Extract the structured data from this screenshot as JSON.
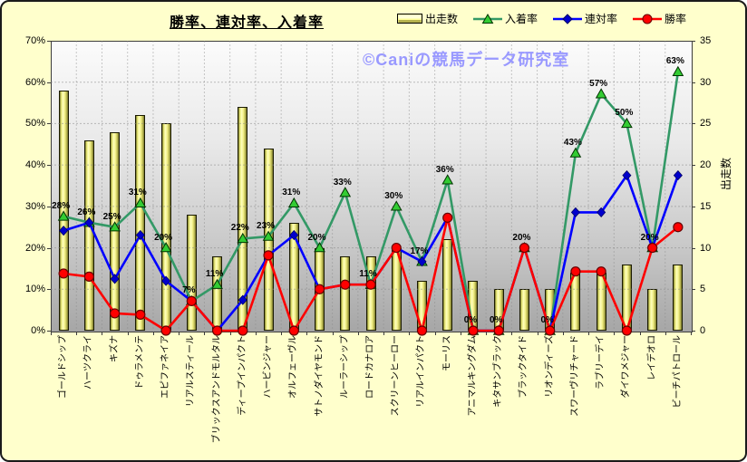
{
  "title": "勝率、連対率、入着率",
  "watermark": "©Caniの競馬データ研究室",
  "legend": [
    {
      "label": "出走数",
      "marker": "bar"
    },
    {
      "label": "入着率",
      "marker": "triangle"
    },
    {
      "label": "連対率",
      "marker": "diamond"
    },
    {
      "label": "勝率",
      "marker": "circle"
    }
  ],
  "colors": {
    "background": "#FFFFCC",
    "bar_face": "#FFFF99",
    "bar_border": "#1a1a00",
    "place_line": "#339966",
    "place_marker": "#33CC33",
    "quinella_line": "#0000FF",
    "quinella_marker": "#0000CC",
    "win_line": "#FF0000",
    "win_marker": "#FF0000",
    "watermark": "#9999FF",
    "gridline": "#8a8a8a"
  },
  "chart_data": {
    "type": "bar+line combo",
    "categories": [
      "ゴールドシップ",
      "ハーツクライ",
      "キズナ",
      "ドゥラメンテ",
      "エピファネイア",
      "リアルスティール",
      "ブリックスアンドモルタル",
      "ディープインパクト",
      "ハービンジャー",
      "オルフェーヴル",
      "サトノダイヤモンド",
      "ルーラーシップ",
      "ロードカナロア",
      "スクリーンヒーロー",
      "リアルインパクト",
      "モーリス",
      "アニマルキングダム",
      "キタサンブラック",
      "ブラックタイド",
      "リオンディーズ",
      "スワーヴリチャード",
      "ラブリーデイ",
      "ダイワメジャー",
      "レイデオロ",
      "ビーチパトロール"
    ],
    "series": [
      {
        "name": "出走数",
        "type": "bar",
        "axis": "right",
        "values": [
          29,
          23,
          24,
          26,
          25,
          14,
          9,
          27,
          22,
          13,
          10,
          9,
          9,
          10,
          6,
          11,
          6,
          5,
          5,
          5,
          7,
          7,
          8,
          5,
          8
        ]
      },
      {
        "name": "入着率",
        "type": "line",
        "marker": "triangle",
        "axis": "left",
        "unit": "%",
        "values": [
          27.59,
          26.09,
          25,
          30.77,
          20,
          7.14,
          11.11,
          22.22,
          22.73,
          30.77,
          20,
          33.33,
          11.11,
          30,
          16.67,
          36.36,
          0,
          0,
          20,
          0,
          42.86,
          57.14,
          50,
          20,
          62.5
        ],
        "point_labels": [
          "28%",
          "26%",
          "25%",
          "31%",
          "20%",
          "7%",
          "11%",
          "22%",
          "23%",
          "31%",
          "20%",
          "33%",
          "11%",
          "30%",
          "17%",
          "36%",
          "0%",
          "0%",
          "20%",
          "0%",
          "43%",
          "57%",
          "50%",
          "20%",
          "63%"
        ]
      },
      {
        "name": "連対率",
        "type": "line",
        "marker": "diamond",
        "axis": "left",
        "unit": "%",
        "values": [
          24.14,
          26.09,
          12.5,
          23.08,
          12,
          7.14,
          0,
          7.41,
          18.18,
          23.08,
          10,
          11.11,
          11.11,
          20,
          16.67,
          27.27,
          0,
          0,
          20,
          0,
          28.57,
          28.57,
          37.5,
          20,
          37.5
        ]
      },
      {
        "name": "勝率",
        "type": "line",
        "marker": "circle",
        "axis": "left",
        "unit": "%",
        "values": [
          13.79,
          13.04,
          4.17,
          3.85,
          0,
          7.14,
          0,
          0,
          18.18,
          0,
          10,
          11.11,
          11.11,
          20,
          0,
          27.27,
          0,
          0,
          20,
          0,
          14.29,
          14.29,
          0,
          20,
          25
        ]
      }
    ],
    "left_axis": {
      "min": 0,
      "max": 70,
      "step": 10,
      "ticks": [
        "0%",
        "10%",
        "20%",
        "30%",
        "40%",
        "50%",
        "60%",
        "70%"
      ]
    },
    "right_axis": {
      "min": 0,
      "max": 35,
      "step": 5,
      "ticks": [
        "0",
        "5",
        "10",
        "15",
        "20",
        "25",
        "30",
        "35"
      ],
      "title": "出走数"
    },
    "grid": "on",
    "legend_position": "top-right"
  }
}
